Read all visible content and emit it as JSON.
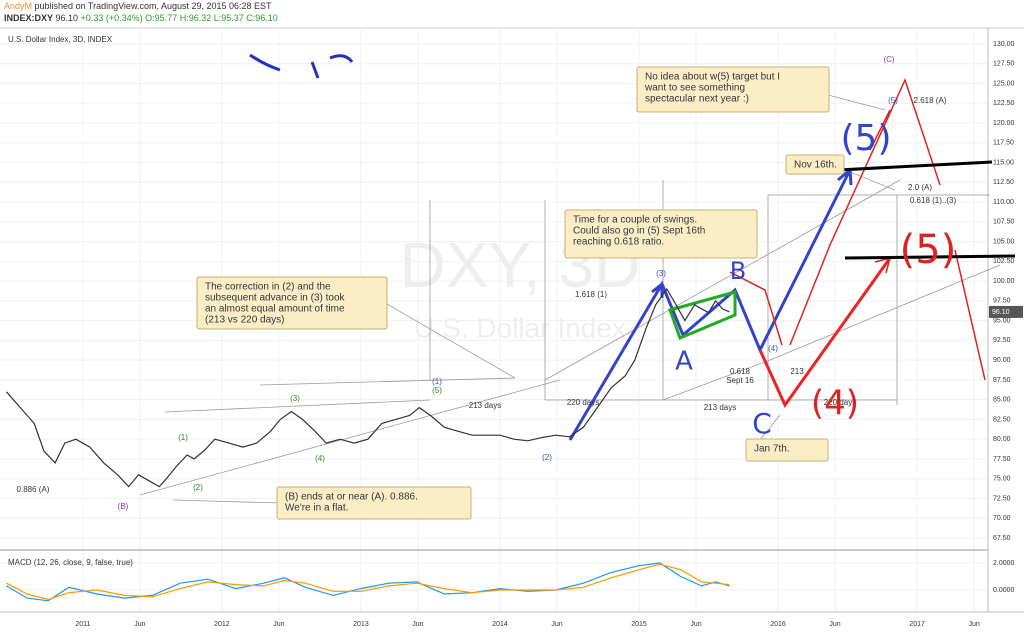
{
  "header": {
    "author": "AndyM",
    "published": "published on TradingView.com, August 29, 2015 06:28 EST",
    "symbol": "INDEX:DXY",
    "last": "96.10",
    "change": "+0.33 (+0.34%)",
    "open": "O:95.77",
    "high": "H:96.32",
    "low": "L:95.37",
    "close": "C:96.10"
  },
  "chart_data": [
    {
      "type": "line",
      "title": "U.S. Dollar Index, 3D, INDEX",
      "watermark": "DXY, 3D",
      "watermark_sub": "U.S. Dollar Index",
      "color": "#333333",
      "x": [
        2010.45,
        2010.55,
        2010.65,
        2010.72,
        2010.8,
        2010.87,
        2010.95,
        2011.05,
        2011.15,
        2011.25,
        2011.33,
        2011.4,
        2011.5,
        2011.55,
        2011.6,
        2011.67,
        2011.75,
        2011.8,
        2011.87,
        2011.95,
        2012.05,
        2012.15,
        2012.25,
        2012.35,
        2012.42,
        2012.5,
        2012.58,
        2012.67,
        2012.75,
        2012.85,
        2012.95,
        2013.05,
        2013.15,
        2013.25,
        2013.35,
        2013.42,
        2013.5,
        2013.6,
        2013.7,
        2013.8,
        2013.9,
        2014.0,
        2014.1,
        2014.2,
        2014.3,
        2014.4,
        2014.5,
        2014.6,
        2014.7,
        2014.8,
        2014.9,
        2014.97,
        2015.05,
        2015.12,
        2015.2,
        2015.25,
        2015.33,
        2015.4,
        2015.5,
        2015.55,
        2015.6,
        2015.65
      ],
      "values": [
        86,
        84,
        82,
        78.5,
        77,
        79.5,
        80,
        79,
        77,
        75.5,
        74,
        75.5,
        74.5,
        74,
        75,
        76.5,
        78,
        77.5,
        78.5,
        80,
        79.5,
        79,
        79.5,
        81,
        82.5,
        83.5,
        82.5,
        81,
        79.5,
        80,
        79.5,
        80,
        82,
        82.5,
        83,
        84,
        83,
        81.5,
        81,
        80.5,
        80.5,
        80.5,
        80,
        79.8,
        80.2,
        80.5,
        80.3,
        81.5,
        84,
        86.5,
        88,
        90,
        94,
        97,
        99,
        97.5,
        95,
        97,
        96,
        97.5,
        96.5,
        96.1
      ],
      "last_value": {
        "value": 96.1,
        "label": "96.10"
      },
      "xlim": [
        2010.44,
        2017.51
      ],
      "ylim": [
        65.98,
        131.77
      ],
      "xticks": [
        {
          "value": 2011,
          "label": "2011"
        },
        {
          "value": 2011.41,
          "label": "Jun"
        },
        {
          "value": 2012,
          "label": "2012"
        },
        {
          "value": 2012.41,
          "label": "Jun"
        },
        {
          "value": 2013,
          "label": "2013"
        },
        {
          "value": 2013.41,
          "label": "Jun"
        },
        {
          "value": 2014,
          "label": "2014"
        },
        {
          "value": 2014.41,
          "label": "Jun"
        },
        {
          "value": 2015,
          "label": "2015"
        },
        {
          "value": 2015.41,
          "label": "Jun"
        },
        {
          "value": 2016,
          "label": "2016"
        },
        {
          "value": 2016.41,
          "label": "Jun"
        },
        {
          "value": 2017,
          "label": "2017"
        },
        {
          "value": 2017.41,
          "label": "Jun"
        }
      ],
      "yticks": [
        {
          "value": 67.5,
          "label": "67.50"
        },
        {
          "value": 70,
          "label": "70.00"
        },
        {
          "value": 72.5,
          "label": "72.50"
        },
        {
          "value": 75,
          "label": "75.00"
        },
        {
          "value": 77.5,
          "label": "77.50"
        },
        {
          "value": 80,
          "label": "80.00"
        },
        {
          "value": 82.5,
          "label": "82.50"
        },
        {
          "value": 85,
          "label": "85.00"
        },
        {
          "value": 87.5,
          "label": "87.50"
        },
        {
          "value": 90,
          "label": "90.00"
        },
        {
          "value": 92.5,
          "label": "92.50"
        },
        {
          "value": 95,
          "label": "95.00"
        },
        {
          "value": 97.5,
          "label": "97.50"
        },
        {
          "value": 100,
          "label": "100.00"
        },
        {
          "value": 102.5,
          "label": "102.50"
        },
        {
          "value": 105,
          "label": "105.00"
        },
        {
          "value": 107.5,
          "label": "107.50"
        },
        {
          "value": 110,
          "label": "110.00"
        },
        {
          "value": 112.5,
          "label": "112.50"
        },
        {
          "value": 115,
          "label": "115.00"
        },
        {
          "value": 117.5,
          "label": "117.50"
        },
        {
          "value": 120,
          "label": "120.00"
        },
        {
          "value": 122.5,
          "label": "122.50"
        },
        {
          "value": 125,
          "label": "125.00"
        },
        {
          "value": 127.5,
          "label": "127.50"
        },
        {
          "value": 130,
          "label": "130.00"
        }
      ],
      "grid": true,
      "annotations": [
        "(1)",
        "(5)",
        "(3)",
        "(1)",
        "(2)",
        "(4)",
        "0.886 (A)",
        "(B)",
        "(2)",
        "(3)",
        "1.618 (1)",
        "213 days",
        "220 days",
        "213 days",
        "220 days",
        "(4)",
        "0.618",
        "213",
        "Sept 16",
        "(C)",
        "(5)",
        "2.618 (A)",
        "2.0 (A)",
        "0.618 (1)..(3)"
      ],
      "callouts": [
        {
          "lines": [
            "No idea about w(5) target but I",
            "want to see something",
            "spectacular next year :)"
          ]
        },
        {
          "lines": [
            "Nov 16th."
          ]
        },
        {
          "lines": [
            "Time for a couple of swings.",
            "Could also go in (5) Sept 16th",
            "reaching 0.618 ratio."
          ]
        },
        {
          "lines": [
            "The correction in (2) and the",
            "subsequent advance in (3) took",
            "an almost equal amount of time",
            "(213 vs 220 days)"
          ]
        },
        {
          "lines": [
            "(B) ends at or near (A). 0.886.",
            "We're in a flat."
          ]
        },
        {
          "lines": [
            "Jan 7th."
          ]
        }
      ],
      "handwritten": [
        "A",
        "B",
        "C",
        "(5)",
        "(4)",
        "(5)"
      ]
    },
    {
      "type": "line",
      "title": "MACD (12, 26, close, 9, false, true)",
      "x": [
        2010.45,
        2010.6,
        2010.75,
        2010.9,
        2011.1,
        2011.3,
        2011.5,
        2011.7,
        2011.9,
        2012.1,
        2012.3,
        2012.45,
        2012.6,
        2012.8,
        2013.0,
        2013.2,
        2013.4,
        2013.6,
        2013.8,
        2014.0,
        2014.2,
        2014.4,
        2014.6,
        2014.8,
        2015.0,
        2015.15,
        2015.3,
        2015.45,
        2015.55,
        2015.65
      ],
      "series": [
        {
          "name": "MACD",
          "color": "#2196f3",
          "values": [
            0.3,
            -0.6,
            -0.8,
            0.2,
            -0.3,
            -0.6,
            -0.4,
            0.5,
            0.8,
            0.1,
            0.5,
            0.9,
            0.2,
            -0.4,
            0.1,
            0.5,
            0.6,
            -0.3,
            -0.2,
            0.1,
            -0.1,
            0,
            0.5,
            1.3,
            1.8,
            2.0,
            1.0,
            0.3,
            0.6,
            0.3
          ]
        },
        {
          "name": "Signal",
          "color": "#ff9800",
          "values": [
            0.5,
            -0.3,
            -0.7,
            -0.2,
            0,
            -0.4,
            -0.5,
            0.1,
            0.6,
            0.4,
            0.3,
            0.7,
            0.5,
            -0.1,
            -0.1,
            0.3,
            0.5,
            0.1,
            -0.2,
            0,
            0,
            0,
            0.2,
            0.9,
            1.5,
            1.9,
            1.5,
            0.6,
            0.5,
            0.4
          ]
        }
      ],
      "xlim": [
        2010.44,
        2017.51
      ],
      "ylim": [
        -1.11,
        2.81
      ],
      "yticks": [
        {
          "value": 0,
          "label": "0.0000"
        },
        {
          "value": 2,
          "label": "2.0000"
        }
      ]
    }
  ]
}
